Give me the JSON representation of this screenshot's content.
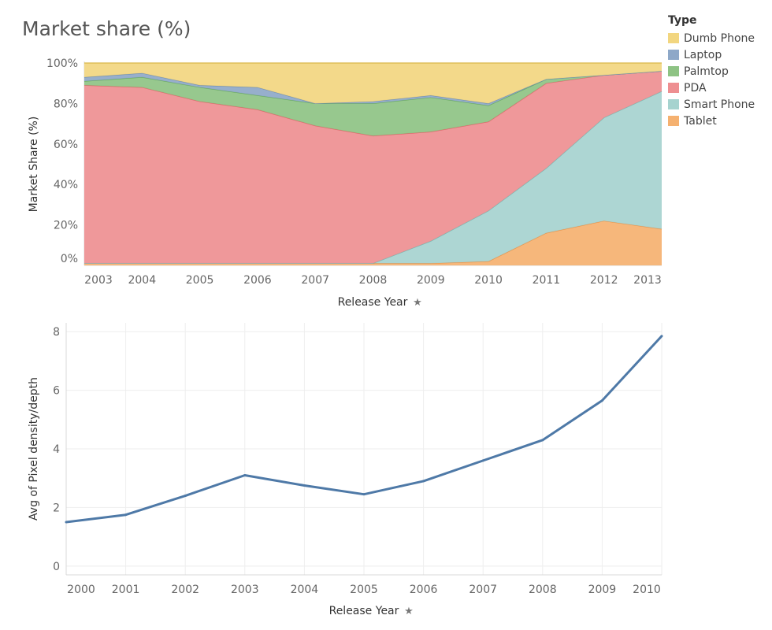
{
  "title": "Market share (%)",
  "legend": {
    "title": "Type",
    "items": [
      {
        "label": "Dumb Phone",
        "color": "#f2d680"
      },
      {
        "label": "Laptop",
        "color": "#8ea8c8"
      },
      {
        "label": "Palmtop",
        "color": "#8ec384"
      },
      {
        "label": "PDA",
        "color": "#ee8f91"
      },
      {
        "label": "Smart Phone",
        "color": "#a6d3cf"
      },
      {
        "label": "Tablet",
        "color": "#f5b170"
      }
    ]
  },
  "chart_data": [
    {
      "type": "area",
      "stacked": true,
      "title": "Market share (%)",
      "xlabel": "Release Year",
      "ylabel": "Market Share (%)",
      "x": [
        2003,
        2004,
        2005,
        2006,
        2007,
        2008,
        2009,
        2010,
        2011,
        2012,
        2013
      ],
      "ylim": [
        0,
        100
      ],
      "yticks": [
        "0%",
        "20%",
        "40%",
        "60%",
        "80%",
        "100%"
      ],
      "series": [
        {
          "name": "Tablet",
          "color": "#f5b170",
          "values": [
            1,
            1,
            1,
            1,
            1,
            1,
            1,
            2,
            16,
            22,
            18
          ]
        },
        {
          "name": "Smart Phone",
          "color": "#a6d3cf",
          "values": [
            0,
            0,
            0,
            0,
            0,
            0,
            11,
            25,
            32,
            51,
            68
          ]
        },
        {
          "name": "PDA",
          "color": "#ee8f91",
          "values": [
            88,
            87,
            80,
            76,
            68,
            63,
            54,
            44,
            42,
            21,
            10
          ]
        },
        {
          "name": "Palmtop",
          "color": "#8ec384",
          "values": [
            2,
            5,
            7,
            7,
            11,
            16,
            17,
            8,
            2,
            0,
            0
          ]
        },
        {
          "name": "Laptop",
          "color": "#8ea8c8",
          "values": [
            2,
            2,
            1,
            4,
            0,
            1,
            1,
            1,
            0,
            0,
            0
          ]
        },
        {
          "name": "Dumb Phone",
          "color": "#f2d680",
          "values": [
            7,
            5,
            11,
            12,
            20,
            19,
            16,
            20,
            8,
            6,
            4
          ]
        }
      ]
    },
    {
      "type": "line",
      "xlabel": "Release Year",
      "ylabel": "Avg of Pixel density/depth",
      "x": [
        2000,
        2001,
        2002,
        2003,
        2004,
        2005,
        2006,
        2007,
        2008,
        2009,
        2010
      ],
      "ylim": [
        -0.3,
        8.3
      ],
      "yticks": [
        0,
        2,
        4,
        6,
        8
      ],
      "grid": true,
      "series": [
        {
          "color": "#4e79a7",
          "values": [
            1.5,
            1.75,
            2.4,
            3.1,
            2.75,
            2.45,
            2.9,
            3.6,
            4.3,
            5.65,
            7.85
          ]
        }
      ]
    }
  ]
}
